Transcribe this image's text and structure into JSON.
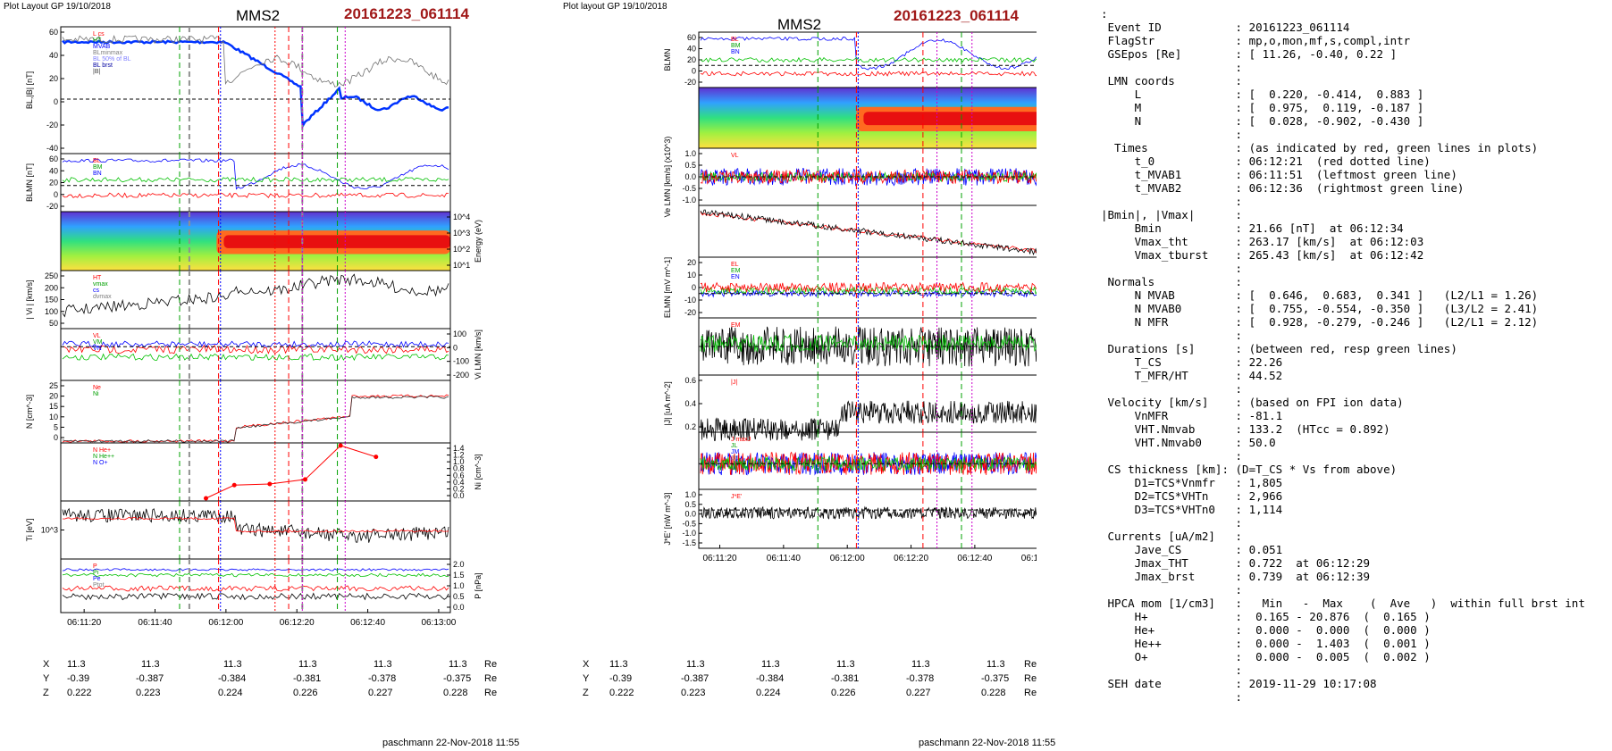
{
  "left_panel": {
    "header": "Plot Layout GP 19/10/2018",
    "title": "MMS2",
    "event": "20161223_061114",
    "footer": "paschmann 22-Nov-2018 11:55",
    "coords": {
      "x": [
        "11.3",
        "11.3",
        "11.3",
        "11.3",
        "11.3",
        "11.3"
      ],
      "y": [
        "-0.39",
        "-0.387",
        "-0.384",
        "-0.381",
        "-0.378",
        "-0.375"
      ],
      "z": [
        "0.222",
        "0.223",
        "0.224",
        "0.226",
        "0.227",
        "0.228"
      ]
    }
  },
  "right_panel": {
    "header": "Plot layout GP 19/10/2018",
    "title": "MMS2",
    "event": "20161223_061114",
    "footer": "paschmann 22-Nov-2018 11:55",
    "coords": {
      "x": [
        "11.3",
        "11.3",
        "11.3",
        "11.3",
        "11.3",
        "11.3"
      ],
      "y": [
        "-0.39",
        "-0.387",
        "-0.384",
        "-0.381",
        "-0.378",
        "-0.375"
      ],
      "z": [
        "0.222",
        "0.223",
        "0.224",
        "0.226",
        "0.227",
        "0.228"
      ]
    }
  },
  "coord_labels": {
    "x": "X",
    "y": "Y",
    "z": "Z",
    "unit": "Re"
  },
  "time_ticks": [
    "06:11:20",
    "06:11:40",
    "06:12:00",
    "06:12:20",
    "06:12:40",
    "06:13:00"
  ],
  "info_lines": [
    ":",
    " Event ID           : 20161223_061114",
    " FlagStr            : mp,o,mon,mf,s,compl,intr",
    " GSEpos [Re]        : [ 11.26, -0.40, 0.22 ]",
    "                    :",
    " LMN coords         :",
    "     L              : [  0.220, -0.414,  0.883 ]",
    "     M              : [  0.975,  0.119, -0.187 ]",
    "     N              : [  0.028, -0.902, -0.430 ]",
    "                    :",
    "  Times             : (as indicated by red, green lines in plots)",
    "     t_0            : 06:12:21  (red dotted line)",
    "     t_MVAB1        : 06:11:51  (leftmost green line)",
    "     t_MVAB2        : 06:12:36  (rightmost green line)",
    "                    :",
    "|Bmin|, |Vmax|      :",
    "     Bmin           : 21.66 [nT]  at 06:12:34",
    "     Vmax_tht       : 263.17 [km/s]  at 06:12:03",
    "     Vmax_tburst    : 265.43 [km/s]  at 06:12:42",
    "                    :",
    " Normals            :",
    "     N MVAB         : [  0.646,  0.683,  0.341 ]   (L2/L1 = 1.26)",
    "     N MVAB0        : [  0.755, -0.554, -0.350 ]   (L3/L2 = 2.41)",
    "     N MFR          : [  0.928, -0.279, -0.246 ]   (L2/L1 = 2.12)",
    "                    :",
    " Durations [s]      : (between red, resp green lines)",
    "     T_CS           : 22.26",
    "     T_MFR/HT       : 44.52",
    "                    :",
    " Velocity [km/s]    : (based on FPI ion data)",
    "     VnMFR          : -81.1",
    "     VHT.Nmvab      : 133.2  (HTcc = 0.892)",
    "     VHT.Nmvab0     : 50.0",
    "                    :",
    " CS thickness [km]: (D=T_CS * Vs from above)",
    "     D1=TCS*Vnmfr   : 1,805",
    "     D2=TCS*VHTn    : 2,966",
    "     D3=TCS*VHTn0   : 1,114",
    "                    :",
    " Currents [uA/m2]   :",
    "     Jave_CS        : 0.051",
    "     Jmax_THT       : 0.722  at 06:12:29",
    "     Jmax_brst      : 0.739  at 06:12:39",
    "                    :",
    " HPCA mom [1/cm3]   :   Min   -  Max    (  Ave   )  within full brst int",
    "     H+             :  0.165 - 20.876  (  0.165 )",
    "     He+            :  0.000 -  0.000  (  0.000 )",
    "     He++           :  0.000 -  1.403  (  0.001 )",
    "     O+             :  0.000 -  0.005  (  0.002 )",
    "                    :",
    " SEH date           : 2019-11-29 10:17:08",
    "                    :"
  ],
  "left_panels": [
    {
      "id": "B",
      "ylabel": "BL,|B| [nT]",
      "ticks": [
        "60",
        "40",
        "20",
        "0",
        "-20",
        "-40"
      ],
      "legend": [
        "L cs",
        "HT",
        "MVAB",
        "BLminmax",
        "BL 50% of BL",
        "BL brst",
        "|B|"
      ]
    },
    {
      "id": "BLMN",
      "ylabel": "BLMN [nT]",
      "ticks": [
        "60",
        "40",
        "20",
        "0",
        "-20"
      ],
      "legend": [
        "BL",
        "BM",
        "BN"
      ]
    },
    {
      "id": "spec",
      "ylabel": "Energy (eV)",
      "ticks": [
        "10^4",
        "10^3",
        "10^2",
        "10^1"
      ],
      "legend": []
    },
    {
      "id": "V",
      "ylabel": "| Vi | [km/s]",
      "ticks": [
        "250",
        "200",
        "150",
        "100",
        "50"
      ],
      "legend": [
        "HT",
        "vmax",
        "cs",
        "dvmax"
      ]
    },
    {
      "id": "VLMN",
      "ylabel": "Vi LMN [km/s]",
      "ticks": [
        "100",
        "0",
        "-100",
        "-200"
      ],
      "legend": [
        "VL",
        "VM",
        "VN"
      ]
    },
    {
      "id": "N",
      "ylabel": "N [cm^-3]",
      "ticks": [
        "25",
        "20",
        "15",
        "10",
        "5",
        "0"
      ],
      "legend": [
        "Ne",
        "Ni"
      ]
    },
    {
      "id": "Ni",
      "ylabel": "Ni [cm^-3]",
      "ticks": [
        "1.4",
        "1.2",
        "1.0",
        "0.8",
        "0.6",
        "0.4",
        "0.2",
        "0.0"
      ],
      "legend": [
        "N He+",
        "N He++",
        "N O+"
      ]
    },
    {
      "id": "Ti",
      "ylabel": "Ti [eV]",
      "ticks": [
        "10^3"
      ],
      "legend": []
    },
    {
      "id": "P",
      "ylabel": "P [nPa]",
      "ticks": [
        "2.0",
        "1.5",
        "1.0",
        "0.5",
        "0.0"
      ],
      "legend": [
        "P",
        "Pi",
        "Pe",
        "Ptot"
      ]
    }
  ],
  "right_panels": [
    {
      "id": "BLMN",
      "ylabel": "BLMN",
      "ticks": [
        "60",
        "40",
        "20",
        "0",
        "-20"
      ],
      "legend": [
        "BL",
        "BM",
        "BN"
      ]
    },
    {
      "id": "spec",
      "ylabel": "Energy (eV)",
      "ticks": [
        "10^4",
        "10^3",
        "10^2",
        "10^1"
      ],
      "legend": []
    },
    {
      "id": "Ve",
      "ylabel": "Ve LMN [km/s] (x10^3)",
      "ticks": [
        "1.0",
        "0.5",
        "0.0",
        "-0.5",
        "-1.0"
      ],
      "legend": [
        "VL"
      ]
    },
    {
      "id": "Te",
      "ylabel": "Te [eV]",
      "ticks": [
        "10^2"
      ],
      "legend": []
    },
    {
      "id": "E",
      "ylabel": "ELMN [mV m^-1]",
      "ticks": [
        "20",
        "10",
        "0",
        "-10",
        "-20"
      ],
      "legend": [
        "EL",
        "EM",
        "EN"
      ]
    },
    {
      "id": "EM",
      "ylabel": "EM [mW m^-2]",
      "ticks": [
        "10",
        "0",
        "-10"
      ],
      "legend": [
        "EM"
      ]
    },
    {
      "id": "J",
      "ylabel": "|J| [uA m^-2]",
      "ticks": [
        "0.6",
        "0.4",
        "0.2"
      ],
      "legend": [
        "|J|"
      ]
    },
    {
      "id": "JLMN",
      "ylabel": "J [uA m^-2]",
      "ticks": [
        "0.6",
        "0.4",
        "0.2",
        "0.0",
        "-0.2",
        "-0.4",
        "-0.6"
      ],
      "legend": [
        "J maxJ",
        "JL",
        "JM",
        "JN"
      ]
    },
    {
      "id": "JE",
      "ylabel": "J*E' [nW m^-3]",
      "ticks": [
        "1.0",
        "0.5",
        "0.0",
        "-0.5",
        "-1.0",
        "-1.5"
      ],
      "legend": [
        "J*E'"
      ]
    }
  ],
  "chart_data": [
    {
      "type": "line",
      "title": "MMS2",
      "subtitle": "20161223_061114",
      "x_ticks": [
        "06:11:20",
        "06:11:40",
        "06:12:00",
        "06:12:20",
        "06:12:40",
        "06:13:00"
      ],
      "series": [
        {
          "name": "BL brst",
          "x": [
            "06:11:14",
            "06:11:40",
            "06:12:00",
            "06:12:10",
            "06:12:20",
            "06:12:30",
            "06:12:34",
            "06:12:40",
            "06:12:50",
            "06:13:04"
          ],
          "values": [
            55,
            58,
            58,
            40,
            22,
            -10,
            -25,
            -5,
            -20,
            -15
          ]
        },
        {
          "name": "|B|",
          "x": [
            "06:11:14",
            "06:11:40",
            "06:12:00",
            "06:12:10",
            "06:12:20",
            "06:12:30",
            "06:12:34",
            "06:12:40",
            "06:12:50",
            "06:13:04"
          ],
          "values": [
            57,
            59,
            58,
            45,
            38,
            30,
            22,
            35,
            30,
            28
          ]
        }
      ],
      "ylim": [
        -45,
        65
      ]
    },
    {
      "type": "line",
      "title": "MMS2",
      "subtitle": "20161223_061114",
      "x_ticks": [
        "06:11:20",
        "06:11:40",
        "06:12:00",
        "06:12:20",
        "06:12:40",
        "06:13:00"
      ],
      "series": [
        {
          "name": "N He++",
          "x": [
            "06:11:55",
            "06:12:03",
            "06:12:13",
            "06:12:23",
            "06:12:33",
            "06:12:43"
          ],
          "values": [
            0.0,
            0.35,
            0.38,
            0.5,
            1.4,
            1.1
          ]
        }
      ],
      "ylim": [
        0,
        1.4
      ]
    }
  ]
}
